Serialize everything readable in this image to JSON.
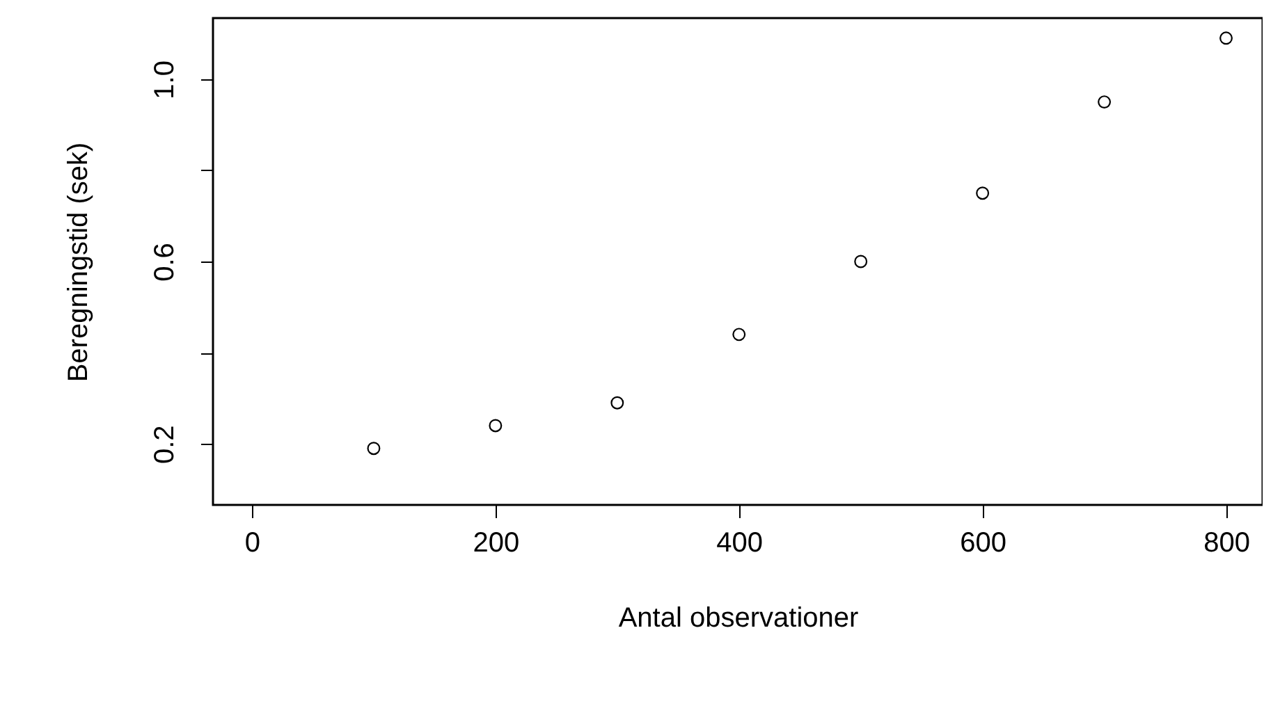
{
  "chart_data": {
    "type": "scatter",
    "xlabel": "Antal observationer",
    "ylabel": "Beregningstid (sek)",
    "x": [
      100,
      200,
      300,
      400,
      500,
      600,
      700,
      800
    ],
    "series": [
      {
        "color": "#000000",
        "values": [
          0.19,
          0.24,
          0.29,
          0.44,
          0.6,
          0.75,
          0.95,
          1.09
        ]
      }
    ],
    "xlim": [
      -32,
      830
    ],
    "ylim": [
      0.066,
      1.134
    ],
    "xticks": [
      0,
      200,
      400,
      600,
      800
    ],
    "yticks": [
      0.2,
      {
        "value": 0.4,
        "label": null
      },
      0.6,
      {
        "value": 0.8,
        "label": null
      },
      {
        "value": 1.0,
        "label": "1.0"
      }
    ],
    "grid": false,
    "marker": "circle"
  }
}
